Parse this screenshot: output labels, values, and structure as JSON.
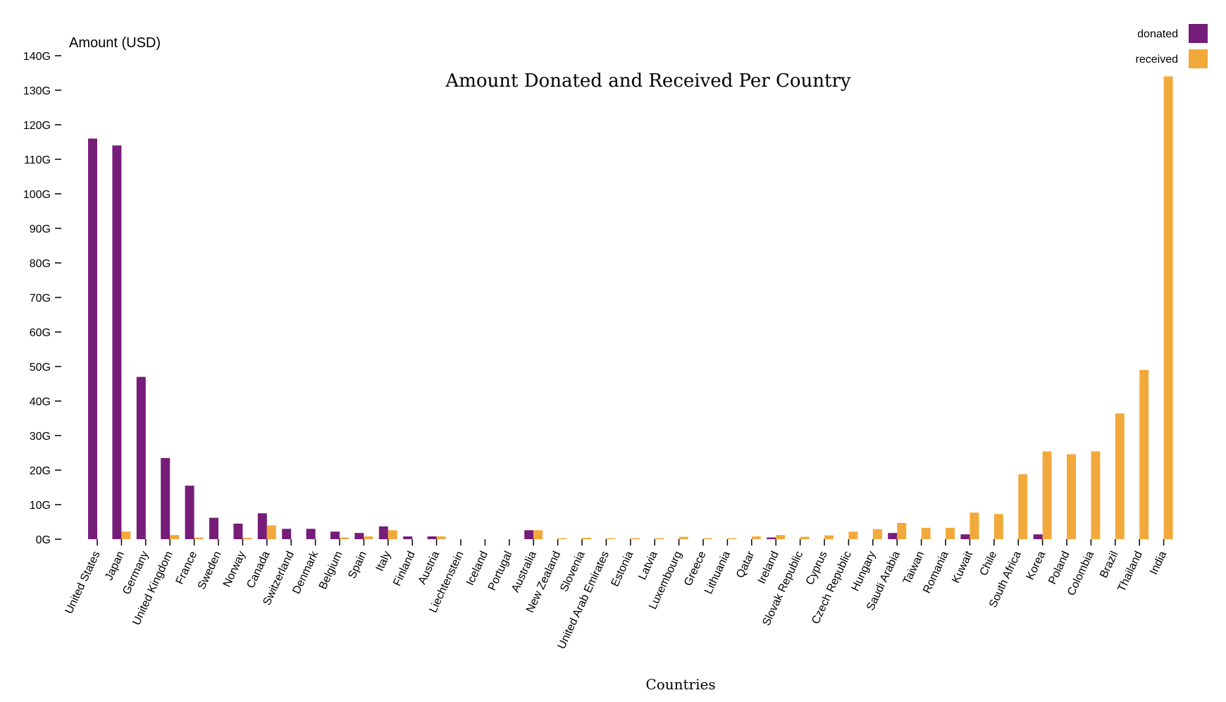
{
  "chart_data": {
    "type": "bar",
    "title": "Amount Donated and Received Per Country",
    "xlabel": "Countries",
    "ylabel": "Amount (USD)",
    "ylim": [
      0,
      140
    ],
    "y_ticks": [
      0,
      10,
      20,
      30,
      40,
      50,
      60,
      70,
      80,
      90,
      100,
      110,
      120,
      130,
      140
    ],
    "y_tick_suffix": "G",
    "legend_position": "top-right",
    "categories": [
      "United States",
      "Japan",
      "Germany",
      "United Kingdom",
      "France",
      "Sweden",
      "Norway",
      "Canada",
      "Switzerland",
      "Denmark",
      "Belgium",
      "Spain",
      "Italy",
      "Finland",
      "Austria",
      "Liechtenstein",
      "Iceland",
      "Portugal",
      "Australia",
      "New Zealand",
      "Slovenia",
      "United Arab Emirates",
      "Estonia",
      "Latvia",
      "Luxembourg",
      "Greece",
      "Lithuania",
      "Qatar",
      "Ireland",
      "Slovak Republic",
      "Cyprus",
      "Czech Republic",
      "Hungary",
      "Saudi Arabia",
      "Taiwan",
      "Romania",
      "Kuwait",
      "Chile",
      "South Africa",
      "Korea",
      "Poland",
      "Colombia",
      "Brazil",
      "Thailand",
      "India"
    ],
    "series": [
      {
        "name": "donated",
        "color": "#761d7a",
        "values": [
          116,
          114,
          47,
          23.5,
          15.5,
          6.2,
          4.5,
          7.5,
          3,
          3,
          2.2,
          1.8,
          3.7,
          0.8,
          0.8,
          0,
          0,
          0,
          2.6,
          0,
          0,
          0,
          0,
          0,
          0,
          0,
          0,
          0,
          0.5,
          0,
          0,
          0,
          0,
          1.8,
          0,
          0,
          1.4,
          0,
          0,
          1.4,
          0,
          0,
          0,
          0,
          0
        ]
      },
      {
        "name": "received",
        "color": "#f2a93b",
        "values": [
          0,
          2.2,
          0,
          1.2,
          0.5,
          0,
          0.4,
          4,
          0,
          0,
          0.5,
          0.8,
          2.6,
          0,
          0.8,
          0,
          0,
          0,
          2.6,
          0.3,
          0.4,
          0.3,
          0.3,
          0.3,
          0.7,
          0.3,
          0.3,
          0.8,
          1.2,
          0.7,
          1.1,
          2.2,
          2.9,
          4.7,
          3.3,
          3.3,
          7.7,
          7.3,
          18.8,
          25.4,
          24.6,
          25.4,
          36.4,
          49,
          134
        ]
      }
    ]
  }
}
